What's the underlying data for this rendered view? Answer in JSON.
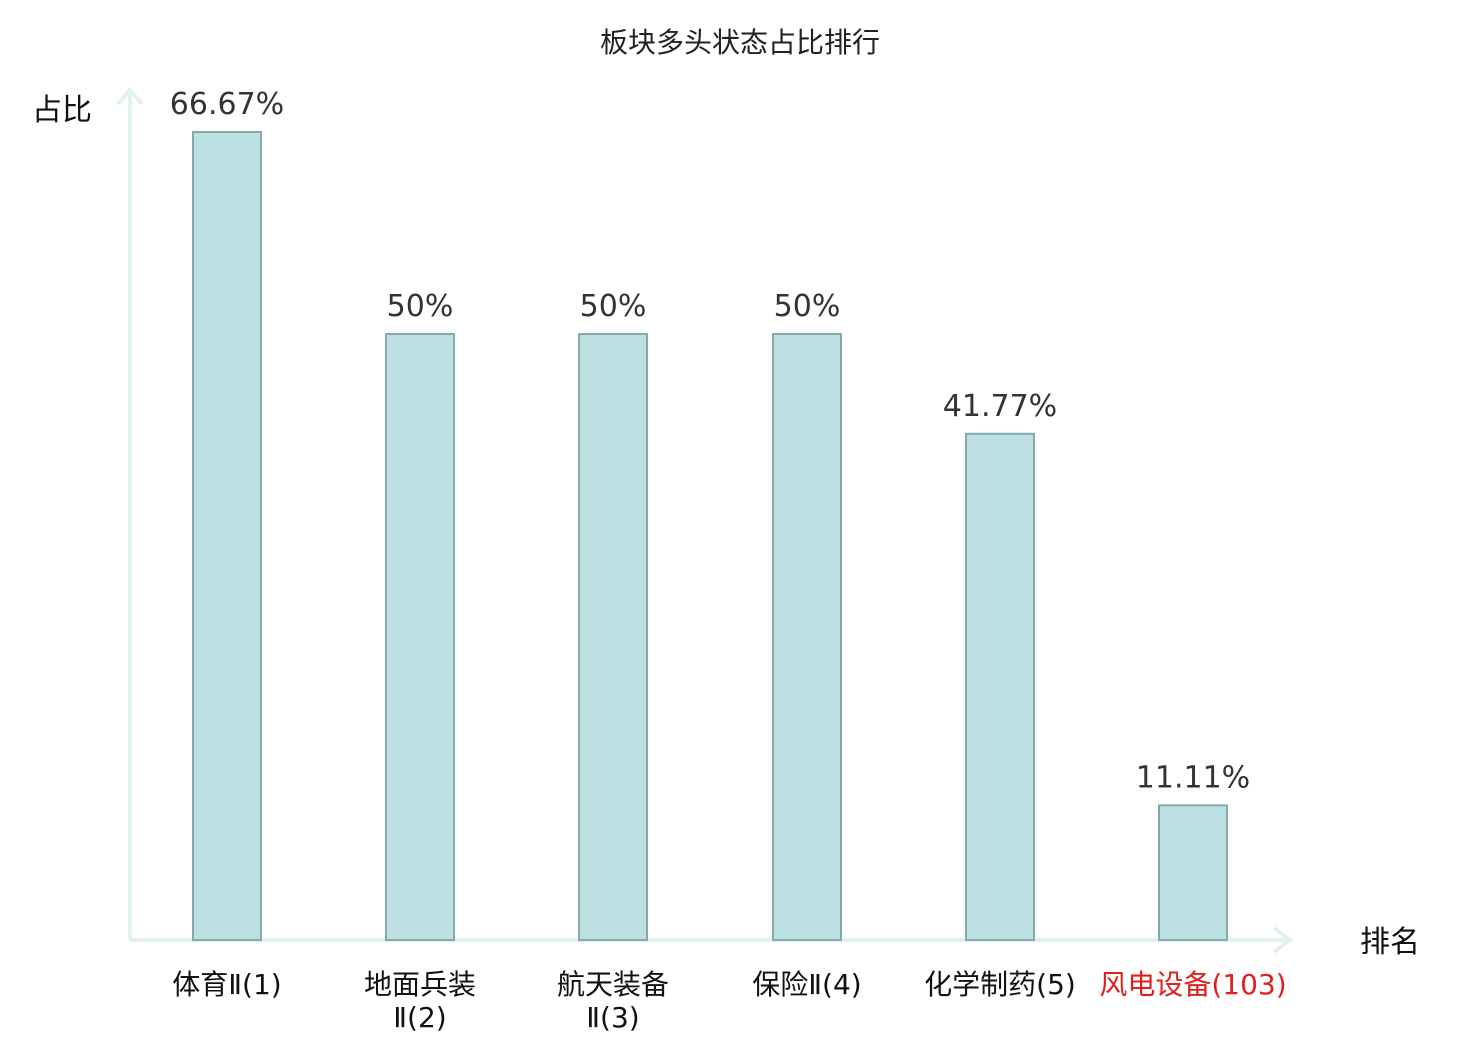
{
  "chart_data": {
    "type": "bar",
    "title": "板块多头状态占比排行",
    "ylabel": "占比",
    "xlabel": "排名",
    "ylim": [
      0,
      70
    ],
    "grid": false,
    "categories": [
      {
        "name": "体育Ⅱ",
        "rank": "(1)",
        "lines": [
          "体育Ⅱ(1)"
        ],
        "highlight": false
      },
      {
        "name": "地面兵装Ⅱ",
        "rank": "(2)",
        "lines": [
          "地面兵装",
          "Ⅱ(2)"
        ],
        "highlight": false
      },
      {
        "name": "航天装备Ⅱ",
        "rank": "(3)",
        "lines": [
          "航天装备",
          "Ⅱ(3)"
        ],
        "highlight": false
      },
      {
        "name": "保险Ⅱ",
        "rank": "(4)",
        "lines": [
          "保险Ⅱ(4)"
        ],
        "highlight": false
      },
      {
        "name": "化学制药",
        "rank": "(5)",
        "lines": [
          "化学制药(5)"
        ],
        "highlight": false
      },
      {
        "name": "风电设备",
        "rank": "(103)",
        "lines": [
          "风电设备(103)"
        ],
        "highlight": true
      }
    ],
    "values": [
      66.67,
      50,
      50,
      50,
      41.77,
      11.11
    ],
    "value_labels": [
      "66.67%",
      "50%",
      "50%",
      "50%",
      "41.77%",
      "11.11%"
    ]
  },
  "colors": {
    "bar_fill": "#bde0e3",
    "bar_stroke": "#86a9ad",
    "axis": "#e0f2f0",
    "text": "#111111",
    "highlight": "#e02020"
  }
}
